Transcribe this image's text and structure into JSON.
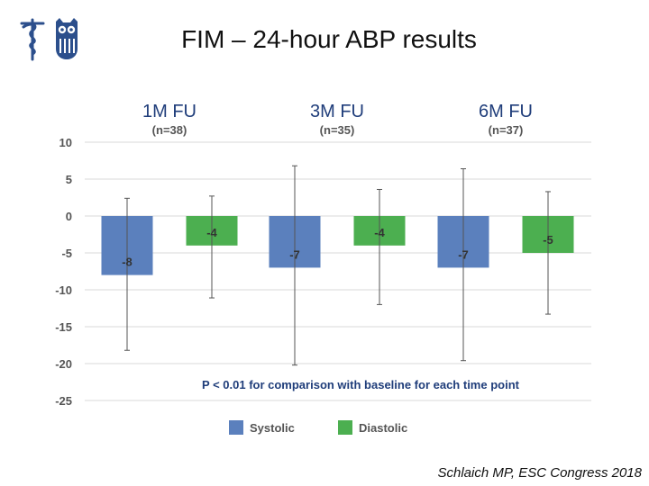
{
  "slide": {
    "title": "FIM – 24-hour ABP results",
    "citation": "Schlaich MP, ESC Congress 2018",
    "logo_icon": "university-seal-logo-icon"
  },
  "colors": {
    "systolic": "#5b80bd",
    "diastolic": "#4caf50",
    "group_title": "#1f3d7a",
    "text": "#555555",
    "grid": "#d9d9d9",
    "error_bar": "#555555"
  },
  "chart_data": {
    "type": "bar",
    "categories": [
      "1M FU",
      "3M FU",
      "6M FU"
    ],
    "category_n": [
      "(n=38)",
      "(n=35)",
      "(n=37)"
    ],
    "series": [
      {
        "name": "Systolic",
        "values": [
          -8,
          -7,
          -7
        ],
        "labels": [
          "-8",
          "-7",
          "-7"
        ],
        "error_low": [
          -18.2,
          -20.2,
          -19.6
        ],
        "error_high": [
          2.4,
          6.8,
          6.4
        ]
      },
      {
        "name": "Diastolic",
        "values": [
          -4,
          -4,
          -5
        ],
        "labels": [
          "-4",
          "-4",
          "-5"
        ],
        "error_low": [
          -11.1,
          -12.0,
          -13.3
        ],
        "error_high": [
          2.7,
          3.6,
          3.3
        ]
      }
    ],
    "y_ticks": [
      10,
      5,
      0,
      -5,
      -10,
      -15,
      -20,
      -25
    ],
    "ylim": [
      -25,
      10
    ],
    "grid": true,
    "legend": "bottom",
    "annotation": "P < 0.01 for comparison with baseline for each time point"
  }
}
